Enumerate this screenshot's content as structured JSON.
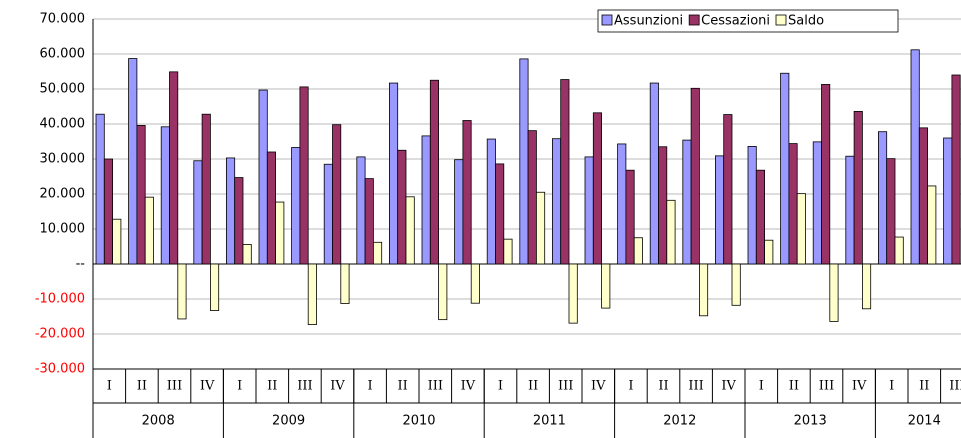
{
  "chart_data": {
    "type": "bar",
    "categories": [
      [
        "2008",
        "I"
      ],
      [
        "2008",
        "II"
      ],
      [
        "2008",
        "III"
      ],
      [
        "2008",
        "IV"
      ],
      [
        "2009",
        "I"
      ],
      [
        "2009",
        "II"
      ],
      [
        "2009",
        "III"
      ],
      [
        "2009",
        "IV"
      ],
      [
        "2010",
        "I"
      ],
      [
        "2010",
        "II"
      ],
      [
        "2010",
        "III"
      ],
      [
        "2010",
        "IV"
      ],
      [
        "2011",
        "I"
      ],
      [
        "2011",
        "II"
      ],
      [
        "2011",
        "III"
      ],
      [
        "2011",
        "IV"
      ],
      [
        "2012",
        "I"
      ],
      [
        "2012",
        "II"
      ],
      [
        "2012",
        "III"
      ],
      [
        "2012",
        "IV"
      ],
      [
        "2013",
        "I"
      ],
      [
        "2013",
        "II"
      ],
      [
        "2013",
        "III"
      ],
      [
        "2013",
        "IV"
      ],
      [
        "2014",
        "I"
      ],
      [
        "2014",
        "II"
      ],
      [
        "2014",
        "III"
      ]
    ],
    "series": [
      {
        "name": "Assunzioni",
        "color": "#9999ff",
        "values": [
          42800,
          58700,
          39200,
          29500,
          30300,
          49700,
          33300,
          28500,
          30600,
          51700,
          36600,
          29800,
          35700,
          58600,
          35800,
          30600,
          34300,
          51700,
          35400,
          30900,
          33600,
          54500,
          34900,
          30800,
          37800,
          61200,
          36000
        ]
      },
      {
        "name": "Cessazioni",
        "color": "#993366",
        "values": [
          30000,
          39600,
          54900,
          42800,
          24700,
          32000,
          50600,
          39800,
          24400,
          32500,
          52500,
          41000,
          28600,
          38100,
          52700,
          43200,
          26800,
          33500,
          50200,
          42700,
          26800,
          34400,
          51300,
          43600,
          30100,
          38900,
          54000
        ]
      },
      {
        "name": "Saldo",
        "color": "#ffffcc",
        "values": [
          12800,
          19100,
          -15700,
          -13300,
          5600,
          17700,
          -17300,
          -11300,
          6200,
          19200,
          -15900,
          -11200,
          7100,
          20500,
          -16900,
          -12600,
          7500,
          18200,
          -14800,
          -11800,
          6800,
          20100,
          -16400,
          -12800,
          7700,
          22300,
          null
        ]
      }
    ],
    "ylim": [
      -30000,
      70000
    ],
    "yticks": [
      {
        "value": -30000,
        "label": "-30.000"
      },
      {
        "value": -20000,
        "label": "-20.000"
      },
      {
        "value": -10000,
        "label": "-10.000"
      },
      {
        "value": 0,
        "label": "--"
      },
      {
        "value": 10000,
        "label": "10.000"
      },
      {
        "value": 20000,
        "label": "20.000"
      },
      {
        "value": 30000,
        "label": "30.000"
      },
      {
        "value": 40000,
        "label": "40.000"
      },
      {
        "value": 50000,
        "label": "50.000"
      },
      {
        "value": 60000,
        "label": "60.000"
      },
      {
        "value": 70000,
        "label": "70.000"
      }
    ],
    "grid": true,
    "legend": "top-right",
    "negative_tick_color": "#ff0000"
  }
}
